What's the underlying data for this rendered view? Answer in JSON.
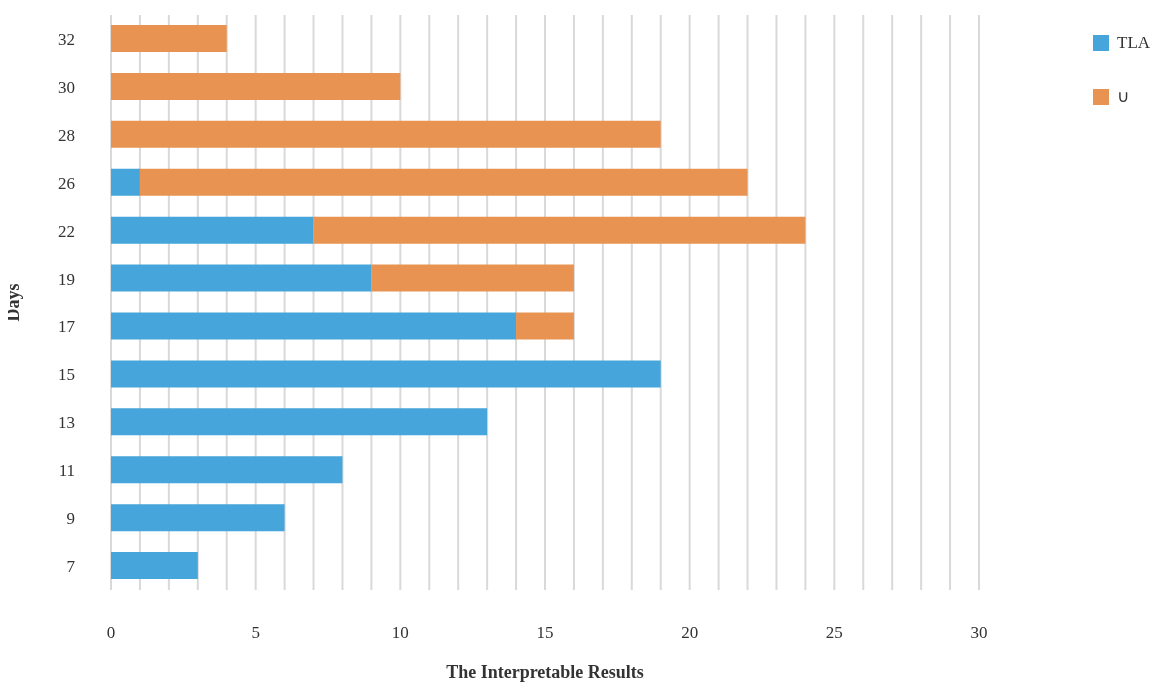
{
  "chart_data": {
    "type": "bar",
    "orientation": "horizontal",
    "stacked": true,
    "xlabel": "The Interpretable Results",
    "ylabel": "Days",
    "categories": [
      "32",
      "30",
      "28",
      "26",
      "22",
      "19",
      "17",
      "15",
      "13",
      "11",
      "9",
      "7"
    ],
    "series": [
      {
        "name": "TLA",
        "color": "#46a5da",
        "values": [
          0,
          0,
          0,
          1,
          7,
          9,
          14,
          19,
          13,
          8,
          6,
          3
        ]
      },
      {
        "name": "∪",
        "color": "#e89352",
        "values": [
          4,
          10,
          19,
          21,
          17,
          7,
          2,
          0,
          0,
          0,
          0,
          0
        ]
      }
    ],
    "xlim": [
      0,
      30
    ],
    "xticks": [
      0,
      {
        "value": 1,
        "label": null
      },
      {
        "value": 2,
        "label": null
      },
      {
        "value": 3,
        "label": null
      },
      {
        "value": 4,
        "label": null
      },
      5,
      {
        "value": 6,
        "label": null
      },
      {
        "value": 7,
        "label": null
      },
      {
        "value": 8,
        "label": null
      },
      {
        "value": 9,
        "label": null
      },
      10,
      {
        "value": 11,
        "label": null
      },
      {
        "value": 12,
        "label": null
      },
      {
        "value": 13,
        "label": null
      },
      {
        "value": 14,
        "label": null
      },
      15,
      {
        "value": 16,
        "label": null
      },
      {
        "value": 17,
        "label": null
      },
      {
        "value": 18,
        "label": null
      },
      {
        "value": 19,
        "label": null
      },
      20,
      {
        "value": 21,
        "label": null
      },
      {
        "value": 22,
        "label": null
      },
      {
        "value": 23,
        "label": null
      },
      {
        "value": 24,
        "label": null
      },
      25,
      {
        "value": 26,
        "label": null
      },
      {
        "value": 27,
        "label": null
      },
      {
        "value": 28,
        "label": null
      },
      {
        "value": 29,
        "label": null
      },
      30
    ],
    "grid": "x",
    "legend": "top right"
  }
}
